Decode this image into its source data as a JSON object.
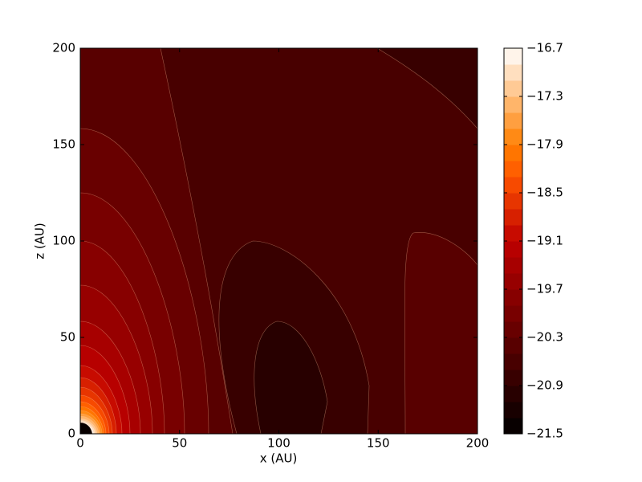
{
  "chart_data": {
    "type": "contour",
    "x_label": "x (AU)",
    "y_label": "z (AU)",
    "xlim": [
      0,
      200
    ],
    "ylim": [
      0,
      200
    ],
    "xticks": [
      0,
      50,
      100,
      150,
      200
    ],
    "yticks": [
      0,
      50,
      100,
      150,
      200
    ],
    "colormap": "gist_heat",
    "levels": [
      -21.5,
      -21.3,
      -21.1,
      -20.9,
      -20.7,
      -20.5,
      -20.3,
      -20.1,
      -19.9,
      -19.7,
      -19.5,
      -19.3,
      -19.1,
      -18.9,
      -18.7,
      -18.5,
      -18.3,
      -18.1,
      -17.9,
      -17.7,
      -17.5,
      -17.3,
      -17.1,
      -16.9,
      -16.7
    ],
    "colorbar_lim": [
      -21.5,
      -16.7
    ],
    "colorbar_ticks": [
      {
        "value": -21.5,
        "label": "−21.5"
      },
      {
        "value": -20.9,
        "label": "−20.9"
      },
      {
        "value": -20.3,
        "label": "−20.3"
      },
      {
        "value": -19.7,
        "label": "−19.7"
      },
      {
        "value": -19.1,
        "label": "−19.1"
      },
      {
        "value": -18.5,
        "label": "−18.5"
      },
      {
        "value": -17.9,
        "label": "−17.9"
      },
      {
        "value": -17.3,
        "label": "−17.3"
      },
      {
        "value": -16.7,
        "label": "−16.7"
      }
    ]
  }
}
